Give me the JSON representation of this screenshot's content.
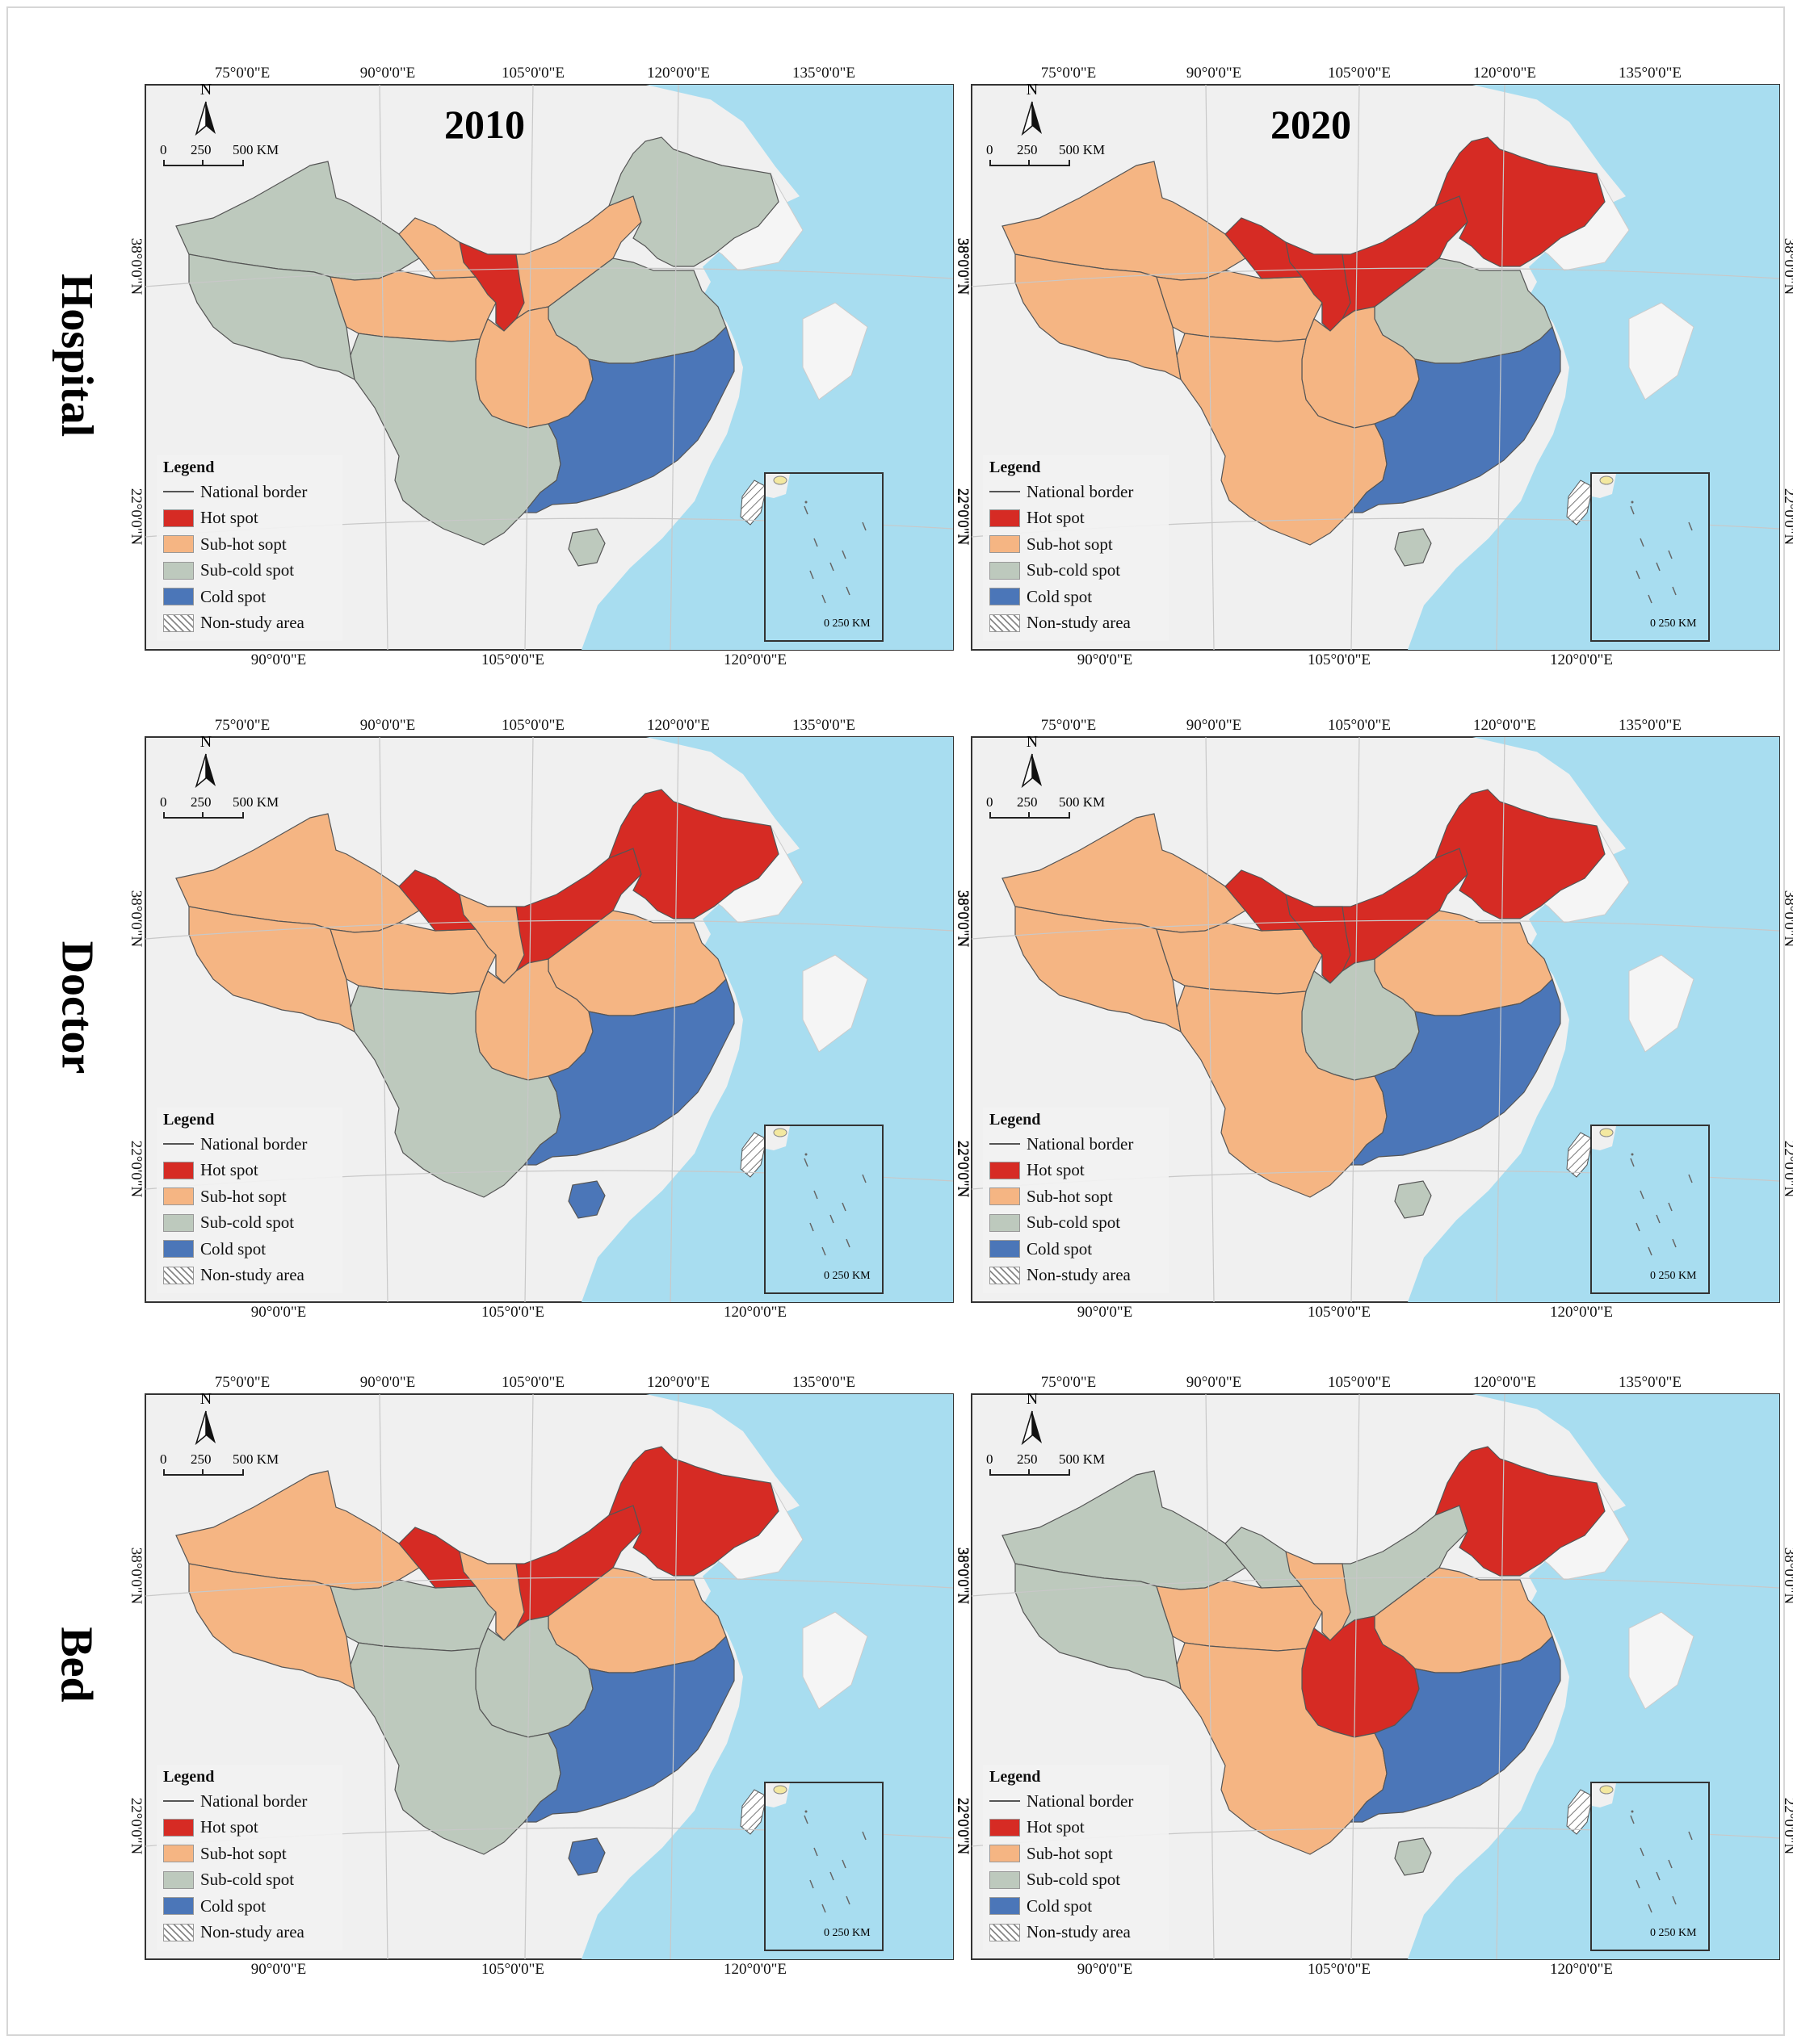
{
  "figure": {
    "columns": [
      "2010",
      "2020"
    ],
    "rows": [
      "Hospital",
      "Doctor",
      "Bed"
    ]
  },
  "axes": {
    "top_longitudes": [
      "75°0'0\"E",
      "90°0'0\"E",
      "105°0'0\"E",
      "120°0'0\"E",
      "135°0'0\"E"
    ],
    "bottom_longitudes": [
      "90°0'0\"E",
      "105°0'0\"E",
      "120°0'0\"E"
    ],
    "latitudes": [
      "38°0'0\"N",
      "22°0'0\"N"
    ]
  },
  "map_furniture": {
    "north_label": "N",
    "scale_labels": [
      "0",
      "250",
      "500 KM"
    ],
    "inset_scale": "0  250 KM"
  },
  "legend": {
    "title": "Legend",
    "items": [
      {
        "label": "National border",
        "type": "line"
      },
      {
        "label": "Hot spot",
        "color": "#d62b24"
      },
      {
        "label": "Sub-hot sopt",
        "color": "#f5b583"
      },
      {
        "label": "Sub-cold spot",
        "color": "#bdc9bd"
      },
      {
        "label": "Cold spot",
        "color": "#4b76b8"
      },
      {
        "label": "Non-study area",
        "color": "hatch"
      }
    ]
  },
  "colors": {
    "hot": "#d62b24",
    "subhot": "#f5b583",
    "subcold": "#bdc9bd",
    "cold": "#4b76b8",
    "sea": "#a8ddf0",
    "land_other": "#eeeeee"
  },
  "panels": [
    {
      "row": "Hospital",
      "year": "2010",
      "regions": {
        "northwest": "subcold",
        "west": "subcold",
        "northern_band": "subhot",
        "gansu_ningxia": "hot",
        "qinghai": "subhot",
        "northeast": "subcold",
        "north_china": "subcold",
        "central": "subhot",
        "southwest": "subcold",
        "southeast": "cold",
        "hainan": "subcold"
      }
    },
    {
      "row": "Hospital",
      "year": "2020",
      "regions": {
        "northwest": "subhot",
        "west": "subhot",
        "northern_band": "hot",
        "gansu_ningxia": "hot",
        "qinghai": "subhot",
        "northeast": "hot",
        "north_china": "subcold",
        "central": "subhot",
        "southwest": "subhot",
        "southeast": "cold",
        "hainan": "subcold"
      }
    },
    {
      "row": "Doctor",
      "year": "2010",
      "regions": {
        "northwest": "subhot",
        "west": "subhot",
        "northern_band": "hot",
        "gansu_ningxia": "subhot",
        "qinghai": "subhot",
        "northeast": "hot",
        "north_china": "subhot",
        "central": "subhot",
        "southwest": "subcold",
        "southeast": "cold",
        "hainan": "cold"
      }
    },
    {
      "row": "Doctor",
      "year": "2020",
      "regions": {
        "northwest": "subhot",
        "west": "subhot",
        "northern_band": "hot",
        "gansu_ningxia": "hot",
        "qinghai": "subhot",
        "northeast": "hot",
        "north_china": "subhot",
        "central": "subcold",
        "southwest": "subhot",
        "southeast": "cold",
        "hainan": "subcold"
      }
    },
    {
      "row": "Bed",
      "year": "2010",
      "regions": {
        "northwest": "subhot",
        "west": "subhot",
        "northern_band": "hot",
        "gansu_ningxia": "subhot",
        "qinghai": "subcold",
        "northeast": "hot",
        "north_china": "subhot",
        "central": "subcold",
        "southwest": "subcold",
        "southeast": "cold",
        "hainan": "cold"
      }
    },
    {
      "row": "Bed",
      "year": "2020",
      "regions": {
        "northwest": "subcold",
        "west": "subcold",
        "northern_band": "subcold",
        "gansu_ningxia": "subhot",
        "qinghai": "subhot",
        "northeast": "hot",
        "north_china": "subhot",
        "central": "hot",
        "southwest": "subhot",
        "southeast": "cold",
        "hainan": "subcold"
      }
    }
  ]
}
